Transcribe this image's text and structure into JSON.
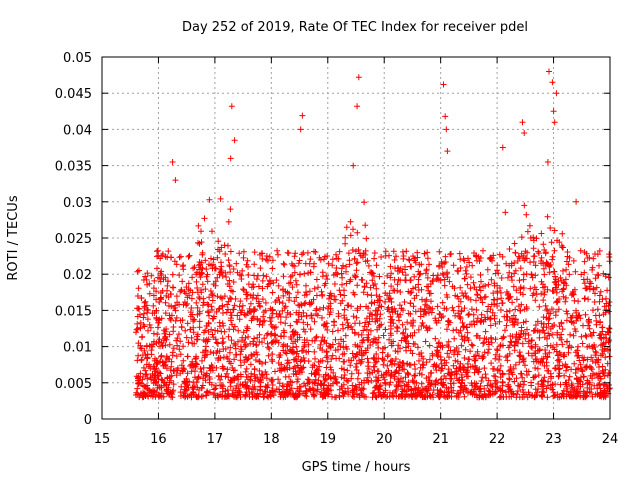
{
  "chart_data": {
    "type": "scatter",
    "title": "Day 252 of 2019, Rate Of TEC Index for receiver pdel",
    "xlabel": "GPS time / hours",
    "ylabel": "ROTI / TECUs",
    "xlim": [
      15,
      24
    ],
    "ylim": [
      0,
      0.05
    ],
    "xticks": [
      15,
      16,
      17,
      18,
      19,
      20,
      21,
      22,
      23,
      24
    ],
    "xtick_labels": [
      "15",
      "16",
      "17",
      "18",
      "19",
      "20",
      "21",
      "22",
      "23",
      "24"
    ],
    "yticks": [
      0,
      0.005,
      0.01,
      0.015,
      0.02,
      0.025,
      0.03,
      0.035,
      0.04,
      0.045,
      0.05
    ],
    "ytick_labels": [
      "0",
      "0.005",
      "0.01",
      "0.015",
      "0.02",
      "0.025",
      "0.03",
      "0.035",
      "0.04",
      "0.045",
      "0.05"
    ],
    "grid": true,
    "marker": "+",
    "color": "#ff0000",
    "series": [
      {
        "name": "ROTI",
        "x_range": [
          15.6,
          24.0
        ],
        "bulk_y_range": [
          0.003,
          0.03
        ],
        "spikes": [
          {
            "x": 16.25,
            "y": 0.0355
          },
          {
            "x": 16.3,
            "y": 0.033
          },
          {
            "x": 17.3,
            "y": 0.0432
          },
          {
            "x": 17.35,
            "y": 0.0385
          },
          {
            "x": 17.28,
            "y": 0.036
          },
          {
            "x": 18.55,
            "y": 0.0419
          },
          {
            "x": 18.52,
            "y": 0.04
          },
          {
            "x": 19.55,
            "y": 0.0472
          },
          {
            "x": 19.52,
            "y": 0.0432
          },
          {
            "x": 19.45,
            "y": 0.035
          },
          {
            "x": 21.05,
            "y": 0.0462
          },
          {
            "x": 21.08,
            "y": 0.0418
          },
          {
            "x": 21.1,
            "y": 0.04
          },
          {
            "x": 21.12,
            "y": 0.037
          },
          {
            "x": 22.1,
            "y": 0.0375
          },
          {
            "x": 22.45,
            "y": 0.041
          },
          {
            "x": 22.48,
            "y": 0.0395
          },
          {
            "x": 22.92,
            "y": 0.048
          },
          {
            "x": 22.98,
            "y": 0.0465
          },
          {
            "x": 23.05,
            "y": 0.045
          },
          {
            "x": 23.0,
            "y": 0.0425
          },
          {
            "x": 23.02,
            "y": 0.041
          },
          {
            "x": 22.9,
            "y": 0.0355
          },
          {
            "x": 23.4,
            "y": 0.03
          }
        ]
      }
    ]
  }
}
